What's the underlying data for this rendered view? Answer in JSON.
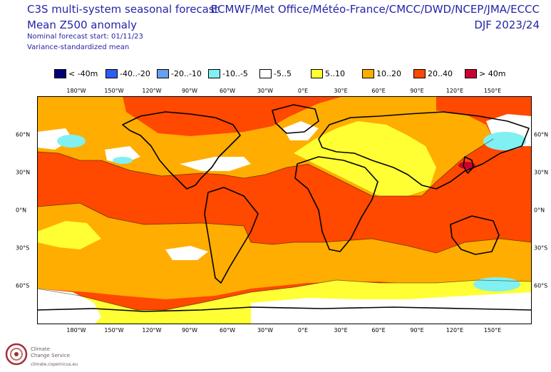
{
  "header": {
    "title_line1": "C3S multi-system seasonal forecast",
    "title_line2": "Mean Z500 anomaly",
    "forecast_start": "Nominal forecast start: 01/11/23",
    "method": "Variance-standardized mean",
    "centres": "ECMWF/Met Office/Météo-France/CMCC/DWD/NCEP/JMA/ECCC",
    "season": "DJF 2023/24"
  },
  "legend": {
    "items": [
      {
        "label": "< -40m",
        "color": "#00007a"
      },
      {
        "label": "-40..-20",
        "color": "#2e5cf2"
      },
      {
        "label": "-20..-10",
        "color": "#66a0f0"
      },
      {
        "label": "-10..-5",
        "color": "#80f0f2"
      },
      {
        "label": "-5..5",
        "color": "#ffffff"
      },
      {
        "label": "5..10",
        "color": "#ffff33"
      },
      {
        "label": "10..20",
        "color": "#ffad00"
      },
      {
        "label": "20..40",
        "color": "#ff4800"
      },
      {
        "label": "> 40m",
        "color": "#cc0033"
      }
    ]
  },
  "map": {
    "lon_ticks": [
      "180°W",
      "150°W",
      "120°W",
      "90°W",
      "60°W",
      "30°W",
      "0°E",
      "30°E",
      "60°E",
      "90°E",
      "120°E",
      "150°E"
    ],
    "lat_ticks": [
      "60°N",
      "30°N",
      "0°N",
      "30°S",
      "60°S"
    ]
  },
  "logo": {
    "name_line1": "Climate",
    "name_line2": "Change Service",
    "url": "climate.copernicus.eu"
  }
}
